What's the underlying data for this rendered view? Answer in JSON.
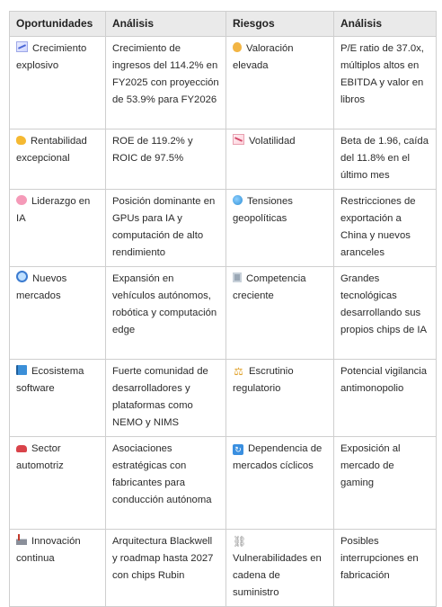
{
  "table": {
    "headers": [
      "Oportunidades",
      "Análisis",
      "Riesgos",
      "Análisis"
    ],
    "rows": [
      {
        "opp_icon": "chart-increasing-icon",
        "opp": "Crecimiento explosivo",
        "opp_analysis": "Crecimiento de ingresos del 114.2% en FY2025 con proyección de 53.9% para FY2026",
        "risk_icon": "money-bag-icon",
        "risk": "Valoración elevada",
        "risk_analysis": "P/E ratio de 37.0x, múltiplos altos en EBITDA y valor en libros"
      },
      {
        "opp_icon": "flexed-biceps-icon",
        "opp": "Rentabilidad excepcional",
        "opp_analysis": "ROE de 119.2% y ROIC de 97.5%",
        "risk_icon": "chart-decreasing-icon",
        "risk": "Volatilidad",
        "risk_analysis": "Beta de 1.96, caída del 11.8% en el último mes"
      },
      {
        "opp_icon": "brain-icon",
        "opp": "Liderazgo en IA",
        "opp_analysis": "Posición dominante en GPUs para IA y computación de alto rendimiento",
        "risk_icon": "globe-icon",
        "risk": "Tensiones geopolíticas",
        "risk_analysis": "Restricciones de exportación a China y nuevos aranceles"
      },
      {
        "opp_icon": "magnifying-glass-icon",
        "opp": "Nuevos mercados",
        "opp_analysis": "Expansión en vehículos autónomos, robótica y computación edge",
        "risk_icon": "office-building-icon",
        "risk": "Competencia creciente",
        "risk_analysis": "Grandes tecnológicas desarrollando sus propios chips de IA"
      },
      {
        "opp_icon": "book-icon",
        "opp": "Ecosistema software",
        "opp_analysis": "Fuerte comunidad de desarrolladores y plataformas como NEMO y NIMS",
        "risk_icon": "balance-scale-icon",
        "risk": "Escrutinio regulatorio",
        "risk_analysis": "Potencial vigilancia antimonopolio"
      },
      {
        "opp_icon": "car-icon",
        "opp": "Sector automotriz",
        "opp_analysis": "Asociaciones estratégicas con fabricantes para conducción autónoma",
        "risk_icon": "cycle-arrows-icon",
        "risk": "Dependencia de mercados cíclicos",
        "risk_analysis": "Exposición al mercado de gaming"
      },
      {
        "opp_icon": "factory-icon",
        "opp": "Innovación continua",
        "opp_analysis": "Arquitectura Blackwell y roadmap hasta 2027 con chips Rubin",
        "risk_icon": "chain-link-icon",
        "risk": "Vulnerabilidades en cadena de suministro",
        "risk_analysis": "Posibles interrupciones en fabricación"
      }
    ]
  }
}
